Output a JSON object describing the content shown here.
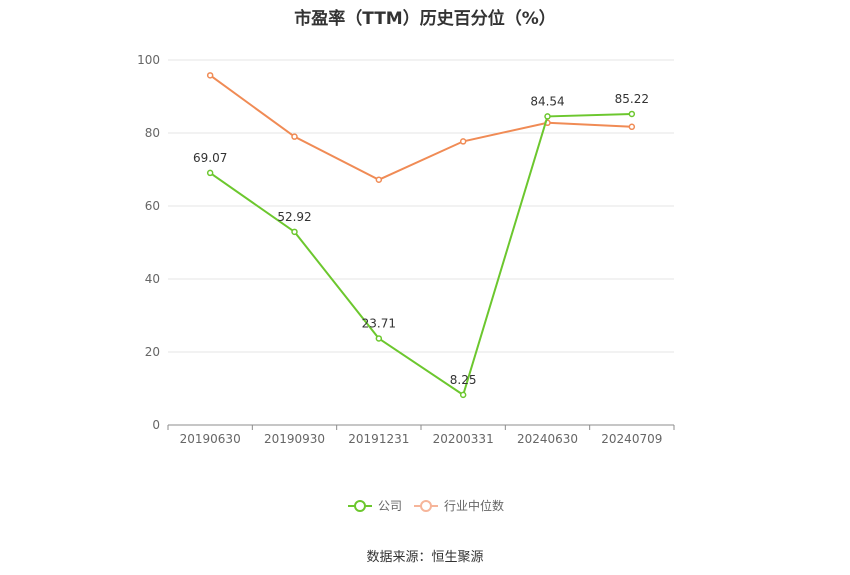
{
  "chart_data": {
    "type": "line",
    "title": "市盈率（TTM）历史百分位（%）",
    "categories": [
      "20190630",
      "20190930",
      "20191231",
      "20200331",
      "20240630",
      "20240709"
    ],
    "series": [
      {
        "name": "公司",
        "color": "#6cc72e",
        "values": [
          69.07,
          52.92,
          23.71,
          8.25,
          84.54,
          85.22
        ],
        "labels": [
          "69.07",
          "52.92",
          "23.71",
          "8.25",
          "84.54",
          "85.22"
        ]
      },
      {
        "name": "行业中位数",
        "color": "#f08b55",
        "values": [
          95.8,
          79.0,
          67.2,
          77.7,
          82.8,
          81.7
        ]
      }
    ],
    "ylim": [
      0,
      100
    ],
    "yticks": [
      "0",
      "20",
      "40",
      "60",
      "80",
      "100"
    ],
    "grid": true,
    "legend_position": "bottom-center"
  },
  "source": "数据来源：恒生聚源"
}
